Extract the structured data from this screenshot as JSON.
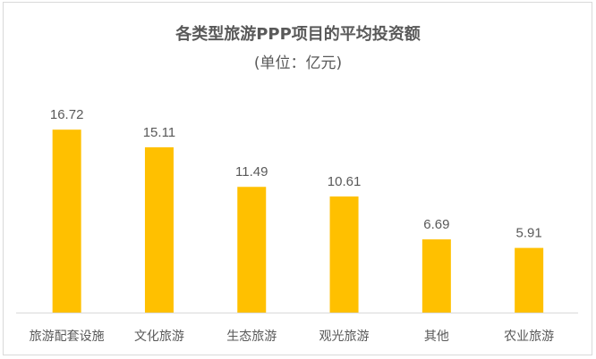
{
  "chart_data": {
    "type": "bar",
    "title": "各类型旅游PPP项目的平均投资额",
    "subtitle": "(单位：亿元)",
    "categories": [
      "旅游配套设施",
      "文化旅游",
      "生态旅游",
      "观光旅游",
      "其他",
      "农业旅游"
    ],
    "values": [
      16.72,
      15.11,
      11.49,
      10.61,
      6.69,
      5.91
    ],
    "data_labels": [
      "16.72",
      "15.11",
      "11.49",
      "10.61",
      "6.69",
      "5.91"
    ],
    "ylim": [
      0,
      20
    ],
    "grid": false,
    "legend": "none",
    "colors": {
      "bar": "#FFC000",
      "text": "#595959",
      "axis": "#d9d9d9"
    }
  }
}
